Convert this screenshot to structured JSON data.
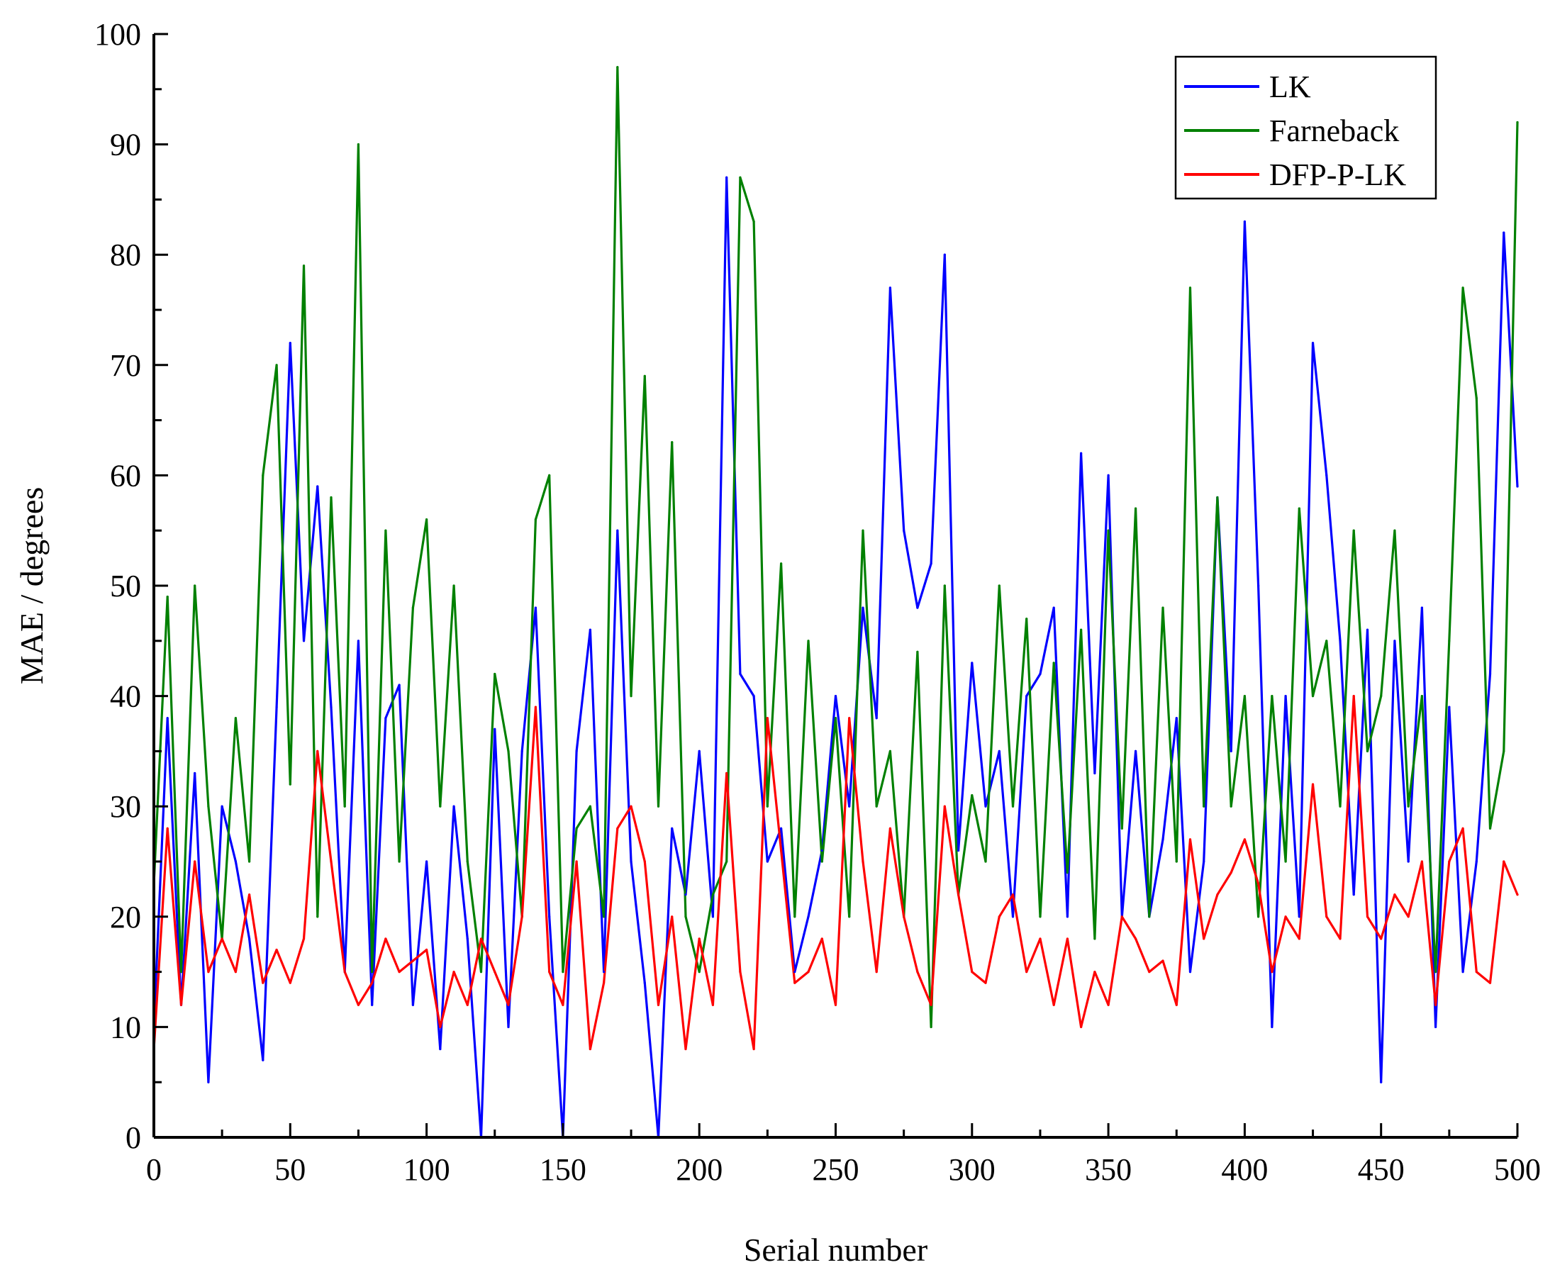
{
  "chart_data": {
    "type": "line",
    "title": "",
    "xlabel": "Serial number",
    "ylabel": "MAE / degrees",
    "xlim": [
      0,
      500
    ],
    "ylim": [
      0,
      100
    ],
    "xticks": [
      0,
      50,
      100,
      150,
      200,
      250,
      300,
      350,
      400,
      450,
      500
    ],
    "yticks": [
      0,
      10,
      20,
      30,
      40,
      50,
      60,
      70,
      80,
      90,
      100
    ],
    "x_tick_labels": [
      "0",
      "50",
      "100",
      "150",
      "200",
      "250",
      "300",
      "350",
      "400",
      "450",
      "500"
    ],
    "y_tick_labels": [
      "0",
      "10",
      "20",
      "30",
      "40",
      "50",
      "60",
      "70",
      "80",
      "90",
      "100"
    ],
    "grid": false,
    "legend_position": "top-right",
    "x": [
      0,
      5,
      10,
      15,
      20,
      25,
      30,
      35,
      40,
      45,
      50,
      55,
      60,
      65,
      70,
      75,
      80,
      85,
      90,
      95,
      100,
      105,
      110,
      115,
      120,
      125,
      130,
      135,
      140,
      145,
      150,
      155,
      160,
      165,
      170,
      175,
      180,
      185,
      190,
      195,
      200,
      205,
      210,
      215,
      220,
      225,
      230,
      235,
      240,
      245,
      250,
      255,
      260,
      265,
      270,
      275,
      280,
      285,
      290,
      295,
      300,
      305,
      310,
      315,
      320,
      325,
      330,
      335,
      340,
      345,
      350,
      355,
      360,
      365,
      370,
      375,
      380,
      385,
      390,
      395,
      400,
      405,
      410,
      415,
      420,
      425,
      430,
      435,
      440,
      445,
      450,
      455,
      460,
      465,
      470,
      475,
      480,
      485,
      490,
      495,
      500
    ],
    "series": [
      {
        "name": "LK",
        "color": "#0000ff",
        "values": [
          10,
          38,
          12,
          33,
          5,
          30,
          25,
          18,
          7,
          39,
          72,
          45,
          59,
          39,
          15,
          45,
          12,
          38,
          41,
          12,
          25,
          8,
          30,
          18,
          0,
          37,
          10,
          35,
          48,
          20,
          0,
          35,
          46,
          15,
          55,
          25,
          14,
          0,
          28,
          22,
          35,
          20,
          87,
          42,
          40,
          25,
          28,
          15,
          20,
          26,
          40,
          30,
          48,
          38,
          77,
          55,
          48,
          52,
          80,
          26,
          43,
          30,
          35,
          20,
          40,
          42,
          48,
          20,
          62,
          33,
          60,
          20,
          35,
          20,
          27,
          38,
          15,
          25,
          58,
          35,
          83,
          50,
          10,
          40,
          20,
          72,
          60,
          45,
          22,
          46,
          5,
          45,
          25,
          48,
          10,
          39,
          15,
          25,
          42,
          82,
          59
        ]
      },
      {
        "name": "Farneback",
        "color": "#008000",
        "values": [
          23,
          49,
          15,
          50,
          30,
          18,
          38,
          25,
          60,
          70,
          32,
          79,
          20,
          58,
          30,
          90,
          15,
          55,
          25,
          48,
          56,
          30,
          50,
          25,
          15,
          42,
          35,
          20,
          56,
          60,
          15,
          28,
          30,
          20,
          97,
          40,
          69,
          30,
          63,
          20,
          15,
          22,
          25,
          87,
          83,
          30,
          52,
          20,
          45,
          25,
          38,
          20,
          55,
          30,
          35,
          20,
          44,
          10,
          50,
          22,
          31,
          25,
          50,
          30,
          47,
          20,
          43,
          24,
          46,
          18,
          55,
          28,
          57,
          20,
          48,
          25,
          77,
          30,
          58,
          30,
          40,
          20,
          40,
          25,
          57,
          40,
          45,
          30,
          55,
          35,
          40,
          55,
          30,
          40,
          15,
          45,
          77,
          67,
          28,
          35,
          92
        ]
      },
      {
        "name": "DFP-P-LK",
        "color": "#ff0000",
        "values": [
          8,
          28,
          12,
          25,
          15,
          18,
          15,
          22,
          14,
          17,
          14,
          18,
          35,
          25,
          15,
          12,
          14,
          18,
          15,
          16,
          17,
          10,
          15,
          12,
          18,
          15,
          12,
          20,
          39,
          15,
          12,
          25,
          8,
          14,
          28,
          30,
          25,
          12,
          20,
          8,
          18,
          12,
          33,
          15,
          8,
          38,
          26,
          14,
          15,
          18,
          12,
          38,
          25,
          15,
          28,
          20,
          15,
          12,
          30,
          22,
          15,
          14,
          20,
          22,
          15,
          18,
          12,
          18,
          10,
          15,
          12,
          20,
          18,
          15,
          16,
          12,
          27,
          18,
          22,
          24,
          27,
          23,
          15,
          20,
          18,
          32,
          20,
          18,
          40,
          20,
          18,
          22,
          20,
          25,
          12,
          25,
          28,
          15,
          14,
          25,
          22
        ]
      }
    ]
  }
}
